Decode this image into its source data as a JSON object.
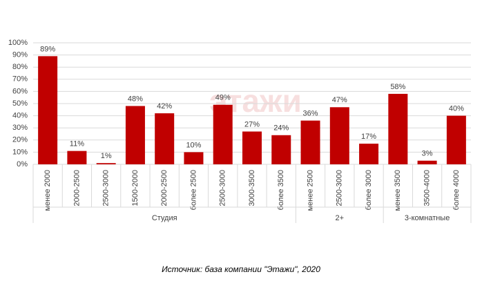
{
  "chart_data": {
    "type": "bar",
    "groups": [
      {
        "label": "Студия",
        "categories": [
          "менее 2000",
          "2000-2500",
          "2500-3000",
          "1500-2000",
          "2000-2500",
          "более 2500",
          "2500-3000",
          "3000-3500",
          "более 3500"
        ]
      },
      {
        "label": "2+",
        "categories": [
          "менее 2500",
          "2500-3000",
          "более 3000"
        ]
      },
      {
        "label": "3-комнатные",
        "categories": [
          "менее 3500",
          "3500-4000",
          "более 4000"
        ]
      }
    ],
    "values": [
      89,
      11,
      1,
      48,
      42,
      10,
      49,
      27,
      24,
      36,
      47,
      17,
      58,
      3,
      40
    ],
    "value_labels": [
      "89%",
      "11%",
      "1%",
      "48%",
      "42%",
      "10%",
      "49%",
      "27%",
      "24%",
      "36%",
      "47%",
      "17%",
      "58%",
      "3%",
      "40%"
    ],
    "color": "#c00000",
    "ylim": [
      0,
      100
    ],
    "yticks": [
      {
        "value": 0,
        "label": "0%"
      },
      {
        "value": 10,
        "label": "10%"
      },
      {
        "value": 20,
        "label": "20%"
      },
      {
        "value": 30,
        "label": "30%"
      },
      {
        "value": 40,
        "label": "40%"
      },
      {
        "value": 50,
        "label": "50%"
      },
      {
        "value": 60,
        "label": "60%"
      },
      {
        "value": 70,
        "label": "70%"
      },
      {
        "value": 80,
        "label": "80%"
      },
      {
        "value": 90,
        "label": "90%"
      },
      {
        "value": 100,
        "label": "100%"
      }
    ],
    "grid": true,
    "watermark": "этажи",
    "source": "Источник: база компании \"Этажи\", 2020"
  }
}
